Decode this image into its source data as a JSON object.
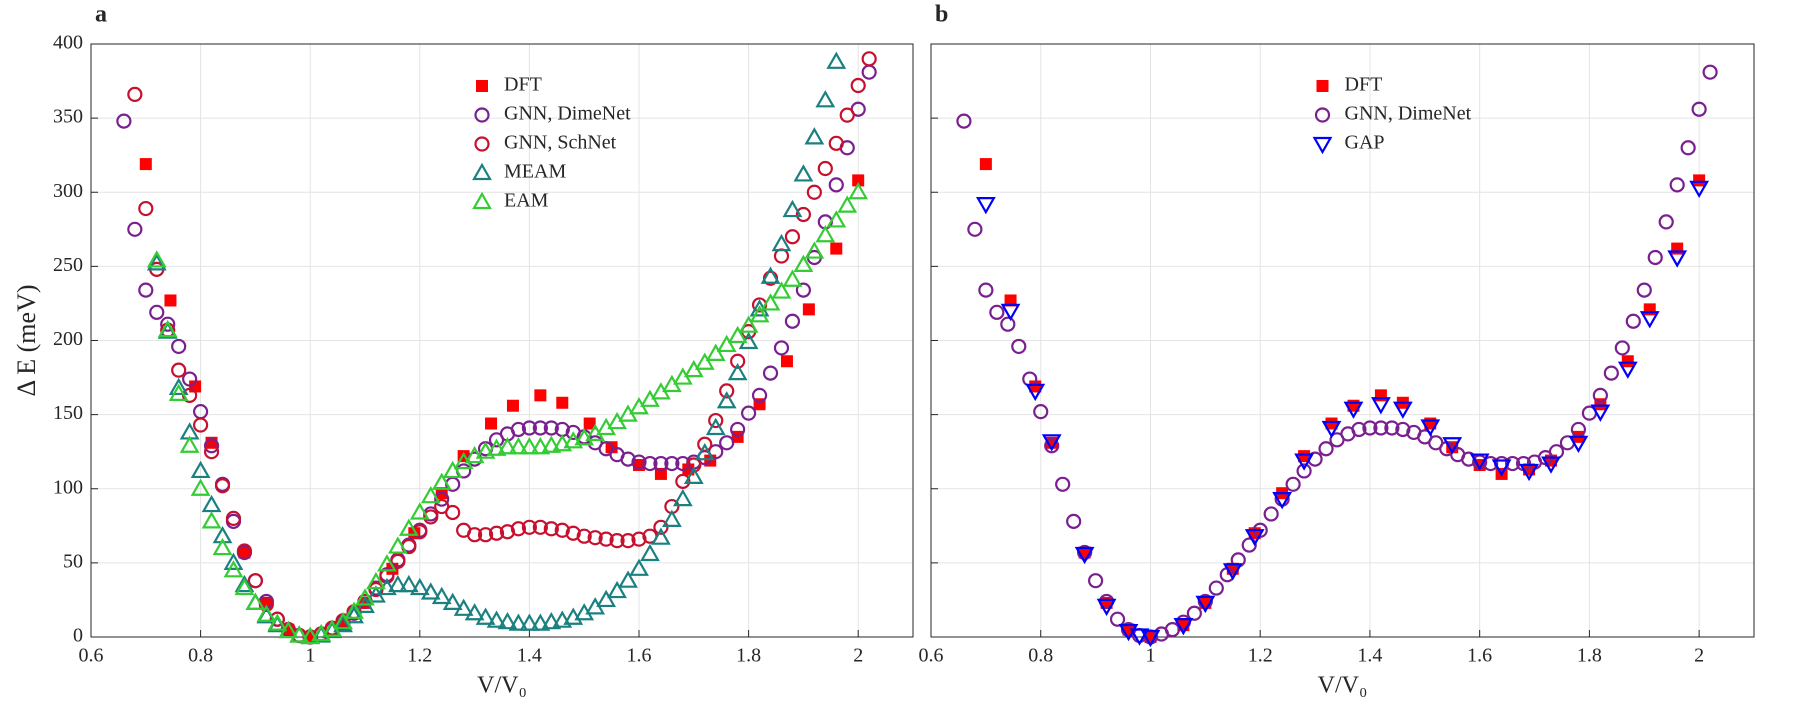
{
  "chart_data": [
    {
      "type": "scatter",
      "title": "a",
      "xlabel": "V/V₀",
      "ylabel": "Δ E (meV)",
      "xlim": [
        0.6,
        2.1
      ],
      "ylim": [
        0,
        400
      ],
      "xticks": [
        0.6,
        0.8,
        1,
        1.2,
        1.4,
        1.6,
        1.8,
        2
      ],
      "yticks": [
        0,
        50,
        100,
        150,
        200,
        250,
        300,
        350,
        400
      ],
      "ytick_labels": true,
      "grid": true,
      "legend": "upper center",
      "series": [
        {
          "name": "DFT",
          "color": "#ff0000",
          "marker": "square",
          "x": [
            0.7,
            0.745,
            0.79,
            0.82,
            0.88,
            0.92,
            0.96,
            1.0,
            1.06,
            1.1,
            1.15,
            1.19,
            1.24,
            1.28,
            1.33,
            1.37,
            1.42,
            1.46,
            1.51,
            1.55,
            1.6,
            1.64,
            1.69,
            1.73,
            1.78,
            1.82,
            1.87,
            1.91,
            1.96,
            2.0
          ],
          "values": [
            319,
            227,
            169,
            131,
            57,
            23,
            5,
            0,
            8,
            23,
            46,
            70,
            97,
            122,
            144,
            156,
            163,
            158,
            144,
            128,
            116,
            110,
            113,
            119,
            135,
            157,
            186,
            221,
            262,
            308
          ]
        },
        {
          "name": "GNN, DimeNet",
          "color": "#7a1f8f",
          "marker": "circle",
          "x": [
            0.66,
            0.68,
            0.7,
            0.72,
            0.74,
            0.76,
            0.78,
            0.8,
            0.82,
            0.84,
            0.86,
            0.88,
            0.9,
            0.92,
            0.94,
            0.96,
            0.98,
            1.0,
            1.02,
            1.04,
            1.06,
            1.08,
            1.1,
            1.12,
            1.14,
            1.16,
            1.18,
            1.2,
            1.22,
            1.24,
            1.26,
            1.28,
            1.3,
            1.32,
            1.34,
            1.36,
            1.38,
            1.4,
            1.42,
            1.44,
            1.46,
            1.48,
            1.5,
            1.52,
            1.54,
            1.56,
            1.58,
            1.6,
            1.62,
            1.64,
            1.66,
            1.68,
            1.7,
            1.72,
            1.74,
            1.76,
            1.78,
            1.8,
            1.82,
            1.84,
            1.86,
            1.88,
            1.9,
            1.92,
            1.94,
            1.96,
            1.98,
            2.0,
            2.02
          ],
          "values": [
            348,
            275,
            234,
            219,
            211,
            196,
            174,
            152,
            129,
            103,
            78,
            57,
            38,
            24,
            12,
            5,
            1,
            0,
            2,
            5,
            10,
            16,
            24,
            33,
            42,
            52,
            62,
            72,
            83,
            93,
            103,
            112,
            120,
            127,
            133,
            137,
            140,
            141,
            141,
            141,
            140,
            138,
            135,
            131,
            127,
            123,
            120,
            118,
            117,
            117,
            117,
            117,
            118,
            121,
            125,
            131,
            140,
            151,
            163,
            178,
            195,
            213,
            234,
            256,
            280,
            305,
            330,
            356,
            381
          ]
        },
        {
          "name": "GNN, SchNet",
          "color": "#c8102e",
          "marker": "circle",
          "x": [
            0.68,
            0.7,
            0.72,
            0.74,
            0.76,
            0.78,
            0.8,
            0.82,
            0.84,
            0.86,
            0.88,
            0.9,
            0.92,
            0.94,
            0.96,
            0.98,
            1.0,
            1.02,
            1.04,
            1.06,
            1.08,
            1.1,
            1.12,
            1.14,
            1.16,
            1.18,
            1.2,
            1.22,
            1.24,
            1.26,
            1.28,
            1.3,
            1.32,
            1.34,
            1.36,
            1.38,
            1.4,
            1.42,
            1.44,
            1.46,
            1.48,
            1.5,
            1.52,
            1.54,
            1.56,
            1.58,
            1.6,
            1.62,
            1.64,
            1.66,
            1.68,
            1.7,
            1.72,
            1.74,
            1.76,
            1.78,
            1.8,
            1.82,
            1.84,
            1.86,
            1.88,
            1.9,
            1.92,
            1.94,
            1.96,
            1.98,
            2.0,
            2.02
          ],
          "values": [
            366,
            289,
            248,
            207,
            180,
            163,
            143,
            125,
            102,
            80,
            58,
            38,
            22,
            12,
            5,
            1,
            0,
            2,
            6,
            11,
            17,
            24,
            32,
            41,
            51,
            61,
            71,
            81,
            88,
            84,
            72,
            69,
            69,
            70,
            71,
            73,
            74,
            74,
            73,
            72,
            70,
            68,
            67,
            66,
            65,
            65,
            66,
            68,
            74,
            88,
            105,
            116,
            130,
            146,
            166,
            186,
            206,
            224,
            242,
            257,
            270,
            285,
            300,
            316,
            333,
            352,
            372,
            390
          ]
        },
        {
          "name": "MEAM",
          "color": "#1a8080",
          "marker": "triangle-up",
          "x": [
            0.72,
            0.74,
            0.76,
            0.78,
            0.8,
            0.82,
            0.84,
            0.86,
            0.88,
            0.9,
            0.92,
            0.94,
            0.96,
            0.98,
            1.0,
            1.02,
            1.04,
            1.06,
            1.08,
            1.1,
            1.12,
            1.14,
            1.16,
            1.18,
            1.2,
            1.22,
            1.24,
            1.26,
            1.28,
            1.3,
            1.32,
            1.34,
            1.36,
            1.38,
            1.4,
            1.42,
            1.44,
            1.46,
            1.48,
            1.5,
            1.52,
            1.54,
            1.56,
            1.58,
            1.6,
            1.62,
            1.64,
            1.66,
            1.68,
            1.7,
            1.72,
            1.74,
            1.76,
            1.78,
            1.8,
            1.82,
            1.84,
            1.86,
            1.88,
            1.9,
            1.92,
            1.94,
            1.96
          ],
          "values": [
            252,
            206,
            168,
            138,
            112,
            89,
            68,
            50,
            35,
            23,
            14,
            8,
            4,
            1,
            0,
            1,
            4,
            8,
            14,
            21,
            28,
            33,
            35,
            35,
            33,
            30,
            27,
            23,
            19,
            16,
            13,
            11,
            10,
            9,
            9,
            9,
            10,
            11,
            13,
            16,
            20,
            25,
            31,
            38,
            46,
            56,
            67,
            79,
            93,
            108,
            124,
            141,
            159,
            178,
            199,
            221,
            243,
            265,
            288,
            312,
            337,
            362,
            388
          ]
        },
        {
          "name": "EAM",
          "color": "#33cc33",
          "marker": "triangle-up",
          "x": [
            0.72,
            0.74,
            0.76,
            0.78,
            0.8,
            0.82,
            0.84,
            0.86,
            0.88,
            0.9,
            0.92,
            0.94,
            0.96,
            0.98,
            1.0,
            1.02,
            1.04,
            1.06,
            1.08,
            1.1,
            1.12,
            1.14,
            1.16,
            1.18,
            1.2,
            1.22,
            1.24,
            1.26,
            1.28,
            1.3,
            1.32,
            1.34,
            1.36,
            1.38,
            1.4,
            1.42,
            1.44,
            1.46,
            1.48,
            1.5,
            1.52,
            1.54,
            1.56,
            1.58,
            1.6,
            1.62,
            1.64,
            1.66,
            1.68,
            1.7,
            1.72,
            1.74,
            1.76,
            1.78,
            1.8,
            1.82,
            1.84,
            1.86,
            1.88,
            1.9,
            1.92,
            1.94,
            1.96,
            1.98,
            2.0
          ],
          "values": [
            254,
            207,
            164,
            129,
            100,
            78,
            60,
            45,
            33,
            23,
            15,
            9,
            4,
            1,
            0,
            2,
            5,
            10,
            17,
            26,
            37,
            49,
            61,
            73,
            84,
            95,
            104,
            112,
            118,
            122,
            125,
            127,
            128,
            128,
            128,
            128,
            129,
            130,
            132,
            134,
            137,
            141,
            145,
            150,
            155,
            160,
            165,
            170,
            175,
            180,
            185,
            191,
            197,
            203,
            210,
            217,
            225,
            233,
            241,
            251,
            260,
            271,
            281,
            291,
            300
          ]
        }
      ]
    },
    {
      "type": "scatter",
      "title": "b",
      "xlabel": "V/V₀",
      "xlim": [
        0.6,
        2.1
      ],
      "ylim": [
        0,
        400
      ],
      "xticks": [
        0.6,
        0.8,
        1,
        1.2,
        1.4,
        1.6,
        1.8,
        2
      ],
      "yticks": [
        0,
        50,
        100,
        150,
        200,
        250,
        300,
        350,
        400
      ],
      "ytick_labels": false,
      "grid": true,
      "legend": "upper center",
      "series": [
        {
          "name": "DFT",
          "color": "#ff0000",
          "marker": "square",
          "x": [
            0.7,
            0.745,
            0.79,
            0.82,
            0.88,
            0.92,
            0.96,
            1.0,
            1.06,
            1.1,
            1.15,
            1.19,
            1.24,
            1.28,
            1.33,
            1.37,
            1.42,
            1.46,
            1.51,
            1.55,
            1.6,
            1.64,
            1.69,
            1.73,
            1.78,
            1.82,
            1.87,
            1.91,
            1.96,
            2.0
          ],
          "values": [
            319,
            227,
            169,
            131,
            57,
            23,
            5,
            0,
            8,
            23,
            46,
            70,
            97,
            122,
            144,
            156,
            163,
            158,
            144,
            128,
            116,
            110,
            113,
            119,
            135,
            157,
            186,
            221,
            262,
            308
          ]
        },
        {
          "name": "GNN, DimeNet",
          "color": "#7a1f8f",
          "marker": "circle",
          "x": [
            0.66,
            0.68,
            0.7,
            0.72,
            0.74,
            0.76,
            0.78,
            0.8,
            0.82,
            0.84,
            0.86,
            0.88,
            0.9,
            0.92,
            0.94,
            0.96,
            0.98,
            1.0,
            1.02,
            1.04,
            1.06,
            1.08,
            1.1,
            1.12,
            1.14,
            1.16,
            1.18,
            1.2,
            1.22,
            1.24,
            1.26,
            1.28,
            1.3,
            1.32,
            1.34,
            1.36,
            1.38,
            1.4,
            1.42,
            1.44,
            1.46,
            1.48,
            1.5,
            1.52,
            1.54,
            1.56,
            1.58,
            1.6,
            1.62,
            1.64,
            1.66,
            1.68,
            1.7,
            1.72,
            1.74,
            1.76,
            1.78,
            1.8,
            1.82,
            1.84,
            1.86,
            1.88,
            1.9,
            1.92,
            1.94,
            1.96,
            1.98,
            2.0,
            2.02
          ],
          "values": [
            348,
            275,
            234,
            219,
            211,
            196,
            174,
            152,
            129,
            103,
            78,
            57,
            38,
            24,
            12,
            5,
            1,
            0,
            2,
            5,
            10,
            16,
            24,
            33,
            42,
            52,
            62,
            72,
            83,
            93,
            103,
            112,
            120,
            127,
            133,
            137,
            140,
            141,
            141,
            141,
            140,
            138,
            135,
            131,
            127,
            123,
            120,
            118,
            117,
            117,
            117,
            117,
            118,
            121,
            125,
            131,
            140,
            151,
            163,
            178,
            195,
            213,
            234,
            256,
            280,
            305,
            330,
            356,
            381
          ]
        },
        {
          "name": "GAP",
          "color": "#0000ff",
          "marker": "triangle-down",
          "x": [
            0.7,
            0.745,
            0.79,
            0.82,
            0.88,
            0.92,
            0.96,
            0.98,
            1.0,
            1.06,
            1.1,
            1.15,
            1.19,
            1.24,
            1.28,
            1.33,
            1.37,
            1.42,
            1.46,
            1.51,
            1.55,
            1.6,
            1.64,
            1.69,
            1.73,
            1.78,
            1.82,
            1.87,
            1.91,
            1.96,
            2.0
          ],
          "values": [
            292,
            220,
            166,
            132,
            56,
            21,
            4,
            1,
            0,
            8,
            23,
            45,
            68,
            93,
            119,
            141,
            154,
            157,
            154,
            142,
            130,
            119,
            115,
            112,
            117,
            131,
            152,
            181,
            215,
            256,
            303
          ]
        }
      ]
    }
  ]
}
